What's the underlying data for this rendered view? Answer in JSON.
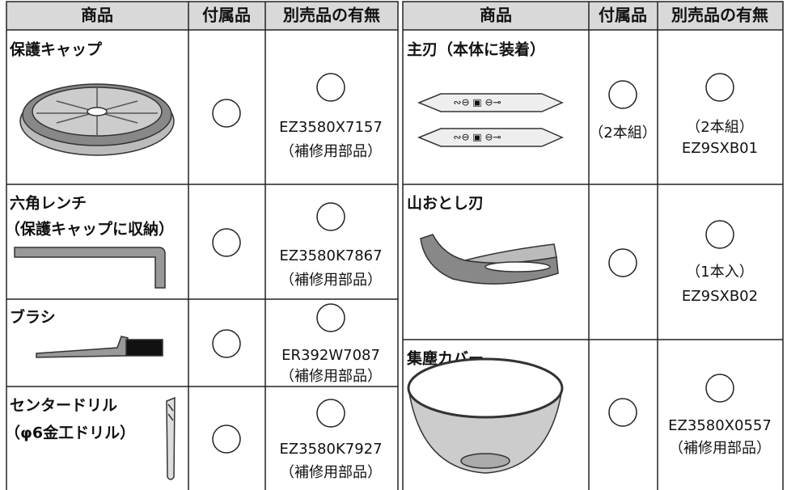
{
  "tables": [
    {
      "header": [
        "商品",
        "付属品",
        "別売品の有無"
      ],
      "rows": [
        {
          "product": [
            "保護キャップ"
          ],
          "optional": [
            "EZ3580X7157",
            "（補修用部品）"
          ]
        },
        {
          "product": [
            "六角レンチ",
            "（保護キャップに収納）"
          ],
          "optional": [
            "EZ3580K7867",
            "（補修用部品）"
          ]
        },
        {
          "product": [
            "ブラシ"
          ],
          "optional": [
            "ER392W7087",
            "（補修用部品）"
          ]
        },
        {
          "product": [
            "センタードリル",
            "（φ6金工ドリル）"
          ],
          "optional": [
            "EZ3580K7927",
            "（補修用部品）"
          ]
        }
      ]
    },
    {
      "header": [
        "商品",
        "付属品",
        "別売品の有無"
      ],
      "rows": [
        {
          "product": [
            "主刃（本体に装着）"
          ],
          "included": [
            "（2本組）"
          ],
          "optional": [
            "（2本組）",
            "EZ9SXB01"
          ]
        },
        {
          "product": [
            "山おとし刃"
          ],
          "optional": [
            "（1本入）",
            "EZ9SXB02"
          ]
        },
        {
          "product": [
            "集塵カバー"
          ],
          "optional": [
            "EZ3580X0557",
            "（補修用部品）"
          ]
        }
      ]
    }
  ]
}
